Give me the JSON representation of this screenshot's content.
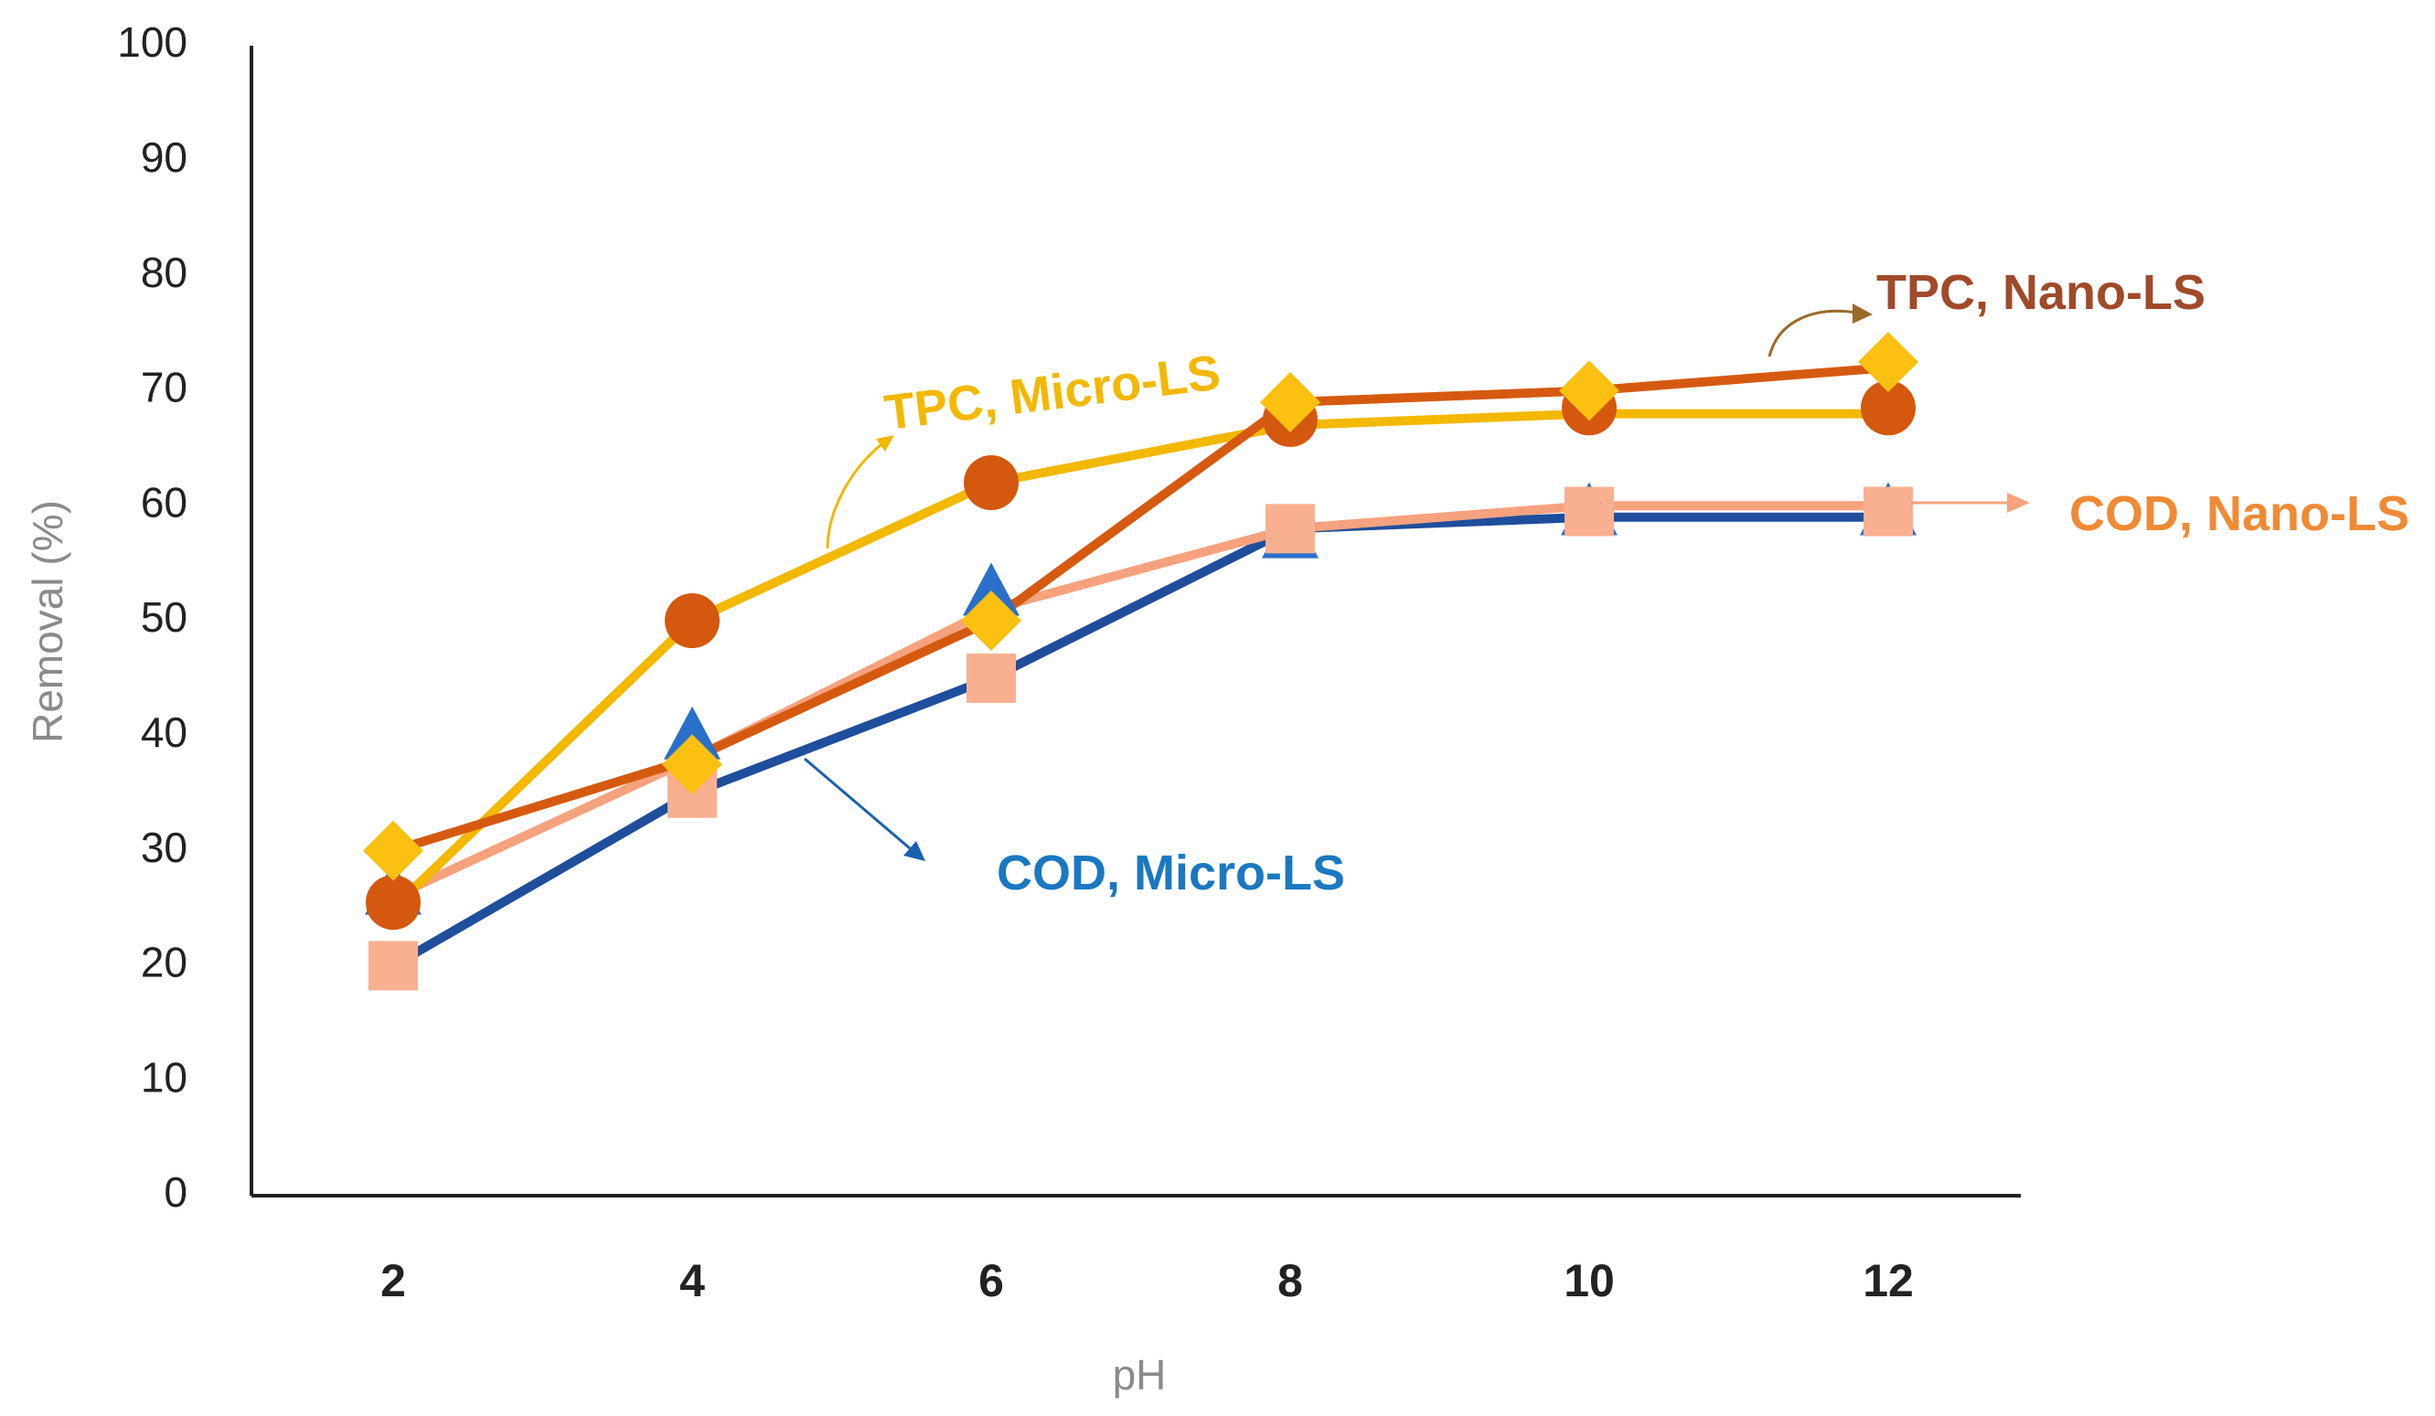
{
  "chart_data": {
    "type": "line",
    "title": "",
    "xlabel": "pH",
    "ylabel": "Removal (%)",
    "x": [
      2,
      4,
      6,
      8,
      10,
      12
    ],
    "x_tick_labels": [
      "2",
      "4",
      "6",
      "8",
      "10",
      "12"
    ],
    "ylim": [
      0,
      100
    ],
    "y_ticks": [
      0,
      10,
      20,
      30,
      40,
      50,
      60,
      70,
      80,
      90,
      100
    ],
    "y_tick_labels": [
      "0",
      "10",
      "20",
      "30",
      "40",
      "50",
      "60",
      "70",
      "80",
      "90",
      "100"
    ],
    "grid": false,
    "series": [
      {
        "name": "COD, Micro-LS",
        "key": "cod_micro",
        "color": "#1f4e9c",
        "marker": "triangle",
        "marker_color": "#2a6fc9",
        "values": [
          20,
          35,
          45,
          58,
          59,
          59
        ]
      },
      {
        "name": "COD, Nano-LS",
        "key": "cod_nano",
        "color": "#f7a27e",
        "marker": "square",
        "marker_color": "#f9b090",
        "values": [
          26,
          38,
          51,
          58,
          60,
          60
        ]
      },
      {
        "name": "TPC, Micro-LS",
        "key": "tpc_micro",
        "color": "#f3b800",
        "marker": "diamond",
        "marker_color": "#fbc010",
        "values": [
          25,
          50,
          62,
          67,
          68,
          68
        ]
      },
      {
        "name": "TPC, Nano-LS",
        "key": "tpc_nano",
        "color": "#d55a10",
        "marker": "circle",
        "marker_color": "#d4580d",
        "values": [
          30,
          38,
          50,
          69,
          70,
          72
        ]
      }
    ],
    "markers": [
      {
        "series": "cod_micro",
        "values": [
          26.5,
          40,
          52.5,
          57.5,
          59.5,
          59.5
        ]
      },
      {
        "series": "cod_nano",
        "values": [
          20,
          35,
          45,
          58,
          59.5,
          59.5
        ]
      },
      {
        "series": "tpc_nano",
        "values": [
          25.5,
          50,
          62,
          67.5,
          68.5,
          68.5
        ]
      },
      {
        "series": "tpc_micro",
        "values": [
          30,
          37.5,
          50,
          69,
          70,
          72.5
        ]
      }
    ],
    "annotations": [
      {
        "text": "TPC, Micro-LS",
        "color": "#f3b800"
      },
      {
        "text": "TPC, Nano-LS",
        "color": "#a04a2a"
      },
      {
        "text": "COD, Nano-LS",
        "color": "#f08a35"
      },
      {
        "text": "COD, Micro-LS",
        "color": "#1a78c2"
      }
    ]
  }
}
